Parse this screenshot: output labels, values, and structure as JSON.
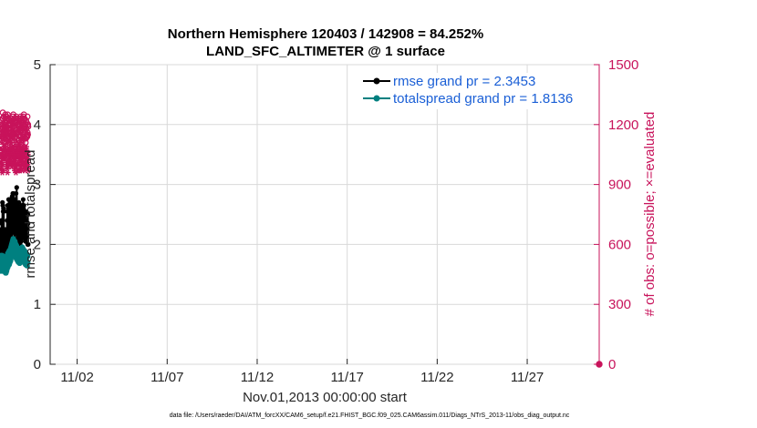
{
  "chart_data": {
    "type": "line",
    "title_line1": "Northern Hemisphere 120403 / 142908 = 84.252%",
    "title_line2": "LAND_SFC_ALTIMETER @ 1 surface",
    "xlabel": "Nov.01,2013 00:00:00 start",
    "ylabel_left": "rmse and totalspread",
    "ylabel_right": "# of obs: o=possible; ×=evaluated",
    "ylim_left": [
      0,
      5
    ],
    "ylim_right": [
      0,
      1500
    ],
    "xlim": [
      0.5,
      31.0
    ],
    "left_ticks": [
      "0",
      "1",
      "2",
      "3",
      "4",
      "5"
    ],
    "right_ticks": [
      "0",
      "300",
      "600",
      "900",
      "1200",
      "1500"
    ],
    "x_ticks": [
      {
        "day": 2,
        "label": "11/02"
      },
      {
        "day": 7,
        "label": "11/07"
      },
      {
        "day": 12,
        "label": "11/12"
      },
      {
        "day": 17,
        "label": "11/17"
      },
      {
        "day": 22,
        "label": "11/22"
      },
      {
        "day": 27,
        "label": "11/27"
      }
    ],
    "footer": "data file: /Users/raeder/DAI/ATM_forcXX/CAM6_setup/f.e21.FHIST_BGC.f09_025.CAM6assim.011/Diags_NTrS_2013-11/obs_diag_output.nc",
    "colors": {
      "rmse": "#000000",
      "spread": "#008080",
      "obs": "#c8135b",
      "legend_text": "#1a5fd6"
    },
    "series": [
      {
        "name": "rmse grand pr = 2.3453",
        "key": "rmse",
        "axis": "left",
        "values": [
          2.15,
          1.85,
          2.2,
          1.9,
          2.25,
          2.0,
          2.4,
          2.0,
          2.35,
          2.05,
          2.4,
          1.95,
          2.7,
          2.1,
          2.65,
          2.15,
          2.55,
          2.0,
          2.6,
          2.05,
          2.55,
          2.0,
          2.2,
          1.95,
          2.05,
          1.9,
          2.15,
          1.85,
          2.1,
          1.8,
          2.25,
          1.85,
          2.2,
          2.1,
          1.95,
          1.8,
          2.1,
          1.85,
          2.2,
          1.95,
          2.4,
          1.9,
          2.55,
          2.05,
          2.65,
          1.95,
          2.25,
          1.9,
          2.6,
          1.95,
          2.75,
          2.0,
          2.75,
          1.95,
          2.45,
          2.1,
          2.65,
          2.05,
          2.5,
          2.1,
          2.75,
          2.15,
          2.75,
          2.05,
          2.6,
          2.15,
          2.75,
          2.25,
          2.5,
          2.35,
          2.55,
          2.2,
          2.8,
          2.35,
          2.75,
          2.3,
          2.85,
          2.25,
          2.65,
          2.2,
          2.85,
          2.3,
          2.65,
          2.25,
          2.7,
          2.3,
          2.55,
          2.1,
          2.55,
          2.45,
          2.5,
          2.2,
          2.75,
          2.25,
          2.7,
          2.2,
          2.85,
          2.25,
          2.65,
          2.2,
          2.95,
          2.5,
          2.6,
          2.5,
          2.65,
          2.3,
          2.2,
          2.15,
          2.3,
          2.0,
          2.25,
          2.0,
          2.4,
          2.1,
          2.7,
          2.15,
          2.55,
          2.2,
          2.6,
          2.0,
          2.5,
          2.0,
          2.45,
          2.25,
          2.3,
          2.35,
          2.2,
          2.05,
          2.3,
          2.1,
          2.35,
          2.15,
          2.65,
          2.2,
          2.5,
          2.3,
          2.6,
          2.35,
          2.65,
          2.4,
          2.75,
          2.35,
          2.6,
          2.2,
          2.65,
          2.25,
          2.5,
          2.3,
          2.45,
          2.1,
          2.3,
          2.15,
          2.5,
          2.2,
          2.4,
          2.05,
          2.55,
          2.15,
          2.4,
          2.3,
          2.35,
          2.05,
          2.2,
          2.15,
          2.15,
          2.3,
          2.25,
          2.35,
          2.0,
          2.5,
          2.35,
          2.0
        ]
      },
      {
        "name": "totalspread grand pr = 1.8136",
        "key": "spread",
        "axis": "left",
        "values": [
          1.8,
          1.55,
          1.82,
          1.58,
          1.8,
          1.6,
          1.82,
          1.6,
          1.78,
          1.55,
          1.8,
          1.6,
          1.82,
          1.58,
          1.8,
          1.55,
          1.78,
          1.55,
          1.8,
          1.55,
          1.8,
          1.6,
          1.78,
          1.55,
          1.8,
          1.55,
          1.78,
          1.58,
          1.76,
          1.52,
          1.78,
          1.55,
          1.76,
          1.52,
          1.76,
          1.52,
          1.78,
          1.55,
          1.8,
          1.55,
          1.82,
          1.58,
          1.85,
          1.6,
          1.85,
          1.62,
          1.86,
          1.62,
          1.88,
          1.65,
          1.88,
          1.65,
          1.9,
          1.66,
          1.9,
          1.66,
          1.9,
          1.68,
          1.92,
          1.7,
          1.94,
          1.72,
          1.96,
          1.72,
          1.98,
          1.75,
          2.0,
          1.78,
          2.02,
          1.8,
          2.04,
          1.82,
          2.06,
          1.84,
          2.08,
          1.84,
          2.1,
          1.86,
          2.1,
          1.86,
          2.1,
          1.85,
          2.08,
          1.84,
          2.06,
          1.82,
          2.05,
          1.8,
          2.04,
          1.8,
          2.05,
          1.78,
          2.02,
          1.78,
          2.0,
          1.76,
          2.0,
          1.75,
          1.98,
          1.74,
          1.98,
          1.74,
          1.96,
          1.72,
          1.95,
          1.72,
          1.94,
          1.7,
          1.92,
          1.7,
          1.92,
          1.7,
          1.92,
          1.7,
          1.9,
          1.68,
          1.9,
          1.68,
          1.9,
          1.68,
          1.92,
          1.7,
          1.92,
          1.7,
          1.94,
          1.72,
          1.94,
          1.72,
          1.95,
          1.72,
          1.95,
          1.74,
          1.96,
          1.74,
          1.96,
          1.74,
          1.95,
          1.72,
          1.94,
          1.72,
          1.92,
          1.7,
          1.92,
          1.7,
          1.9,
          1.7,
          1.9,
          1.68,
          1.9,
          1.68,
          1.88,
          1.66,
          1.88,
          1.66,
          1.88,
          1.66,
          1.86,
          1.66,
          1.85,
          1.64,
          1.85,
          1.65,
          1.84,
          1.65,
          1.84,
          1.64,
          1.82,
          1.7,
          1.8,
          1.7
        ]
      },
      {
        "name": "possible",
        "key": "obs_possible",
        "axis": "right",
        "marker": "o",
        "values": [
          1200,
          1100,
          1180,
          1130,
          1150,
          1090,
          1190,
          1140,
          1160,
          1120,
          1200,
          1140,
          1230,
          1160,
          1260,
          1180,
          1230,
          1130,
          1200,
          1150,
          1240,
          1160,
          1190,
          1130,
          1180,
          1110,
          1210,
          1160,
          1230,
          1180,
          1250,
          1170,
          1240,
          1150,
          1210,
          1150,
          1230,
          1190,
          1240,
          1180,
          1190,
          1130,
          1220,
          1160,
          1250,
          1140,
          1200,
          1110,
          1180,
          1130,
          1230,
          1180,
          1200,
          1140,
          1220,
          1160,
          1180,
          1110,
          1200,
          1170,
          1180,
          1130,
          1160,
          1130,
          1200,
          1160,
          1220,
          1160,
          1180,
          1150,
          1230,
          1120,
          1210,
          1150,
          1190,
          1160,
          1220,
          1150,
          1240,
          1100,
          1250,
          1120,
          1190,
          1150,
          1210,
          1180,
          1220,
          1150,
          1170,
          1130,
          1220,
          1140,
          1210,
          1080,
          1230,
          1140,
          1160,
          1180,
          1240,
          1220,
          1230,
          1170,
          1160,
          1160,
          1210,
          1160,
          1200,
          1130,
          1160,
          1100,
          1200,
          1160,
          1230,
          1120,
          1200,
          1150,
          1220,
          1120,
          1190,
          1110,
          1170,
          1140,
          1230,
          1140,
          1200,
          1160,
          1240,
          1100,
          1220,
          1170,
          1220,
          1170,
          1190,
          1120,
          1180,
          1110,
          1230,
          1130,
          1210,
          1130,
          1180,
          1150,
          1240,
          1210,
          1230,
          1140,
          1250,
          1180,
          1220,
          1160,
          1230,
          1130,
          1180,
          1130,
          1200,
          1160,
          1190,
          1110,
          1200,
          1130,
          1220,
          1140,
          1180,
          1150,
          1210,
          1140,
          1150,
          1140,
          1240,
          1160,
          1200,
          1150,
          1200,
          1190
        ]
      },
      {
        "name": "evaluated",
        "key": "obs_evaluated",
        "axis": "right",
        "marker": "*",
        "values": [
          1050,
          980,
          1080,
          1010,
          1040,
          1000,
          1010,
          970,
          1050,
          990,
          1030,
          960,
          1060,
          1030,
          1040,
          1000,
          1070,
          1030,
          1030,
          970,
          1070,
          1040,
          1080,
          1030,
          1100,
          1070,
          1120,
          1070,
          1090,
          1060,
          1080,
          1060,
          1070,
          1050,
          1060,
          1040,
          1040,
          1000,
          1020,
          990,
          1050,
          980,
          1070,
          960,
          1060,
          1000,
          1050,
          990,
          1080,
          1020,
          1110,
          1060,
          1050,
          1010,
          1080,
          1040,
          1040,
          1000,
          1070,
          1030,
          1060,
          1010,
          1050,
          1000,
          1080,
          1020,
          1060,
          1010,
          1040,
          990,
          1060,
          1000,
          1080,
          1010,
          1050,
          1000,
          1090,
          1040,
          1130,
          1060,
          1090,
          1030,
          1040,
          1000,
          1080,
          1020,
          1050,
          980,
          1030,
          970,
          1060,
          1010,
          1070,
          1000,
          1020,
          960,
          1070,
          1040,
          1000,
          990,
          1080,
          1050,
          1090,
          1040,
          1060,
          970,
          1070,
          1000,
          1060,
          970,
          1070,
          1010,
          1040,
          970,
          1060,
          1030,
          1100,
          1040,
          1080,
          1000,
          1040,
          970,
          1030,
          990,
          1080,
          1020,
          1070,
          1030,
          1060,
          990,
          1080,
          1030,
          1050,
          1000,
          1040,
          970,
          1060,
          1010,
          1080,
          1030,
          1090,
          1000,
          1060,
          1010,
          1050,
          990,
          1070,
          1010,
          1060,
          1000,
          1040,
          970,
          1060,
          1000,
          1070,
          990,
          1080,
          1030,
          1090,
          1020,
          1070,
          1000,
          1020,
          980,
          1030,
          1000,
          1060,
          1050,
          1030,
          1010,
          990,
          970
        ]
      }
    ]
  }
}
